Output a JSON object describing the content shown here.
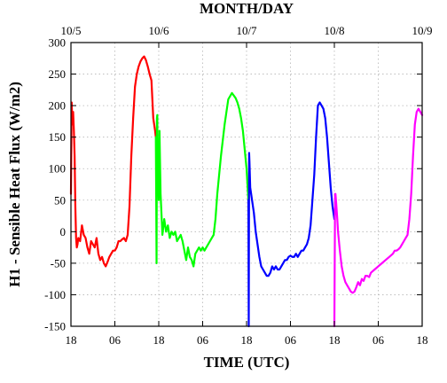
{
  "chart_data": {
    "type": "line",
    "title": "",
    "top_axis_title": "MONTH/DAY",
    "xlabel": "TIME (UTC)",
    "ylabel": "H1 - Sensible Heat Flux (W/m2)",
    "xlim": [
      0,
      96
    ],
    "ylim": [
      -150,
      300
    ],
    "grid": true,
    "x_unit": "hours since 10/4 18 UTC",
    "y_ticks": [
      {
        "value": 300,
        "label": "300"
      },
      {
        "value": 250,
        "label": "250"
      },
      {
        "value": 200,
        "label": "200"
      },
      {
        "value": 150,
        "label": "150"
      },
      {
        "value": 100,
        "label": "100"
      },
      {
        "value": 50,
        "label": "50"
      },
      {
        "value": 0,
        "label": "0"
      },
      {
        "value": -50,
        "label": "-50"
      },
      {
        "value": -100,
        "label": "-100"
      },
      {
        "value": -150,
        "label": "-150"
      }
    ],
    "bottom_ticks": [
      {
        "value": 0,
        "label": "18"
      },
      {
        "value": 12,
        "label": "06"
      },
      {
        "value": 24,
        "label": "18"
      },
      {
        "value": 36,
        "label": "06"
      },
      {
        "value": 48,
        "label": "18"
      },
      {
        "value": 60,
        "label": "06"
      },
      {
        "value": 72,
        "label": "18"
      },
      {
        "value": 84,
        "label": "06"
      },
      {
        "value": 96,
        "label": "18"
      }
    ],
    "top_ticks": [
      {
        "value": 0,
        "label": "10/5"
      },
      {
        "value": 24,
        "label": "10/6"
      },
      {
        "value": 48,
        "label": "10/7"
      },
      {
        "value": 72,
        "label": "10/8"
      },
      {
        "value": 96,
        "label": "10/9"
      }
    ],
    "series": [
      {
        "color": "#ff0000",
        "x": [
          0,
          0.2,
          0.4,
          0.6,
          0.8,
          1,
          1.2,
          1.4,
          1.6,
          1.8,
          2,
          2.5,
          3,
          3.5,
          4,
          4.5,
          5,
          5.5,
          6,
          6.5,
          7,
          7.5,
          8,
          8.5,
          9,
          9.5,
          10,
          10.5,
          11,
          11.5,
          12,
          12.5,
          13,
          13.5,
          14,
          14.5,
          15,
          15.5,
          16,
          16.5,
          17,
          17.5,
          18,
          18.5,
          19,
          19.5,
          20,
          20.5,
          21,
          21.5,
          22,
          22.5,
          23,
          23.2
        ],
        "y": [
          60,
          205,
          170,
          190,
          160,
          120,
          40,
          -10,
          -25,
          -20,
          -10,
          -15,
          10,
          -5,
          -10,
          -25,
          -35,
          -15,
          -20,
          -25,
          -10,
          -35,
          -45,
          -40,
          -50,
          -55,
          -48,
          -40,
          -35,
          -30,
          -30,
          -25,
          -15,
          -15,
          -12,
          -10,
          -15,
          -5,
          40,
          120,
          180,
          230,
          250,
          262,
          270,
          275,
          278,
          272,
          262,
          250,
          240,
          180,
          160,
          150
        ]
      },
      {
        "color": "#00ff00",
        "x": [
          23.2,
          23.3,
          23.4,
          23.5,
          23.6,
          23.7,
          23.8,
          24,
          24.2,
          24.5,
          25,
          25.5,
          26,
          26.5,
          27,
          27.5,
          28,
          28.5,
          29,
          29.5,
          30,
          30.5,
          31,
          31.5,
          32,
          32.5,
          33,
          33.5,
          34,
          34.5,
          35,
          35.5,
          36,
          36.5,
          37,
          37.5,
          38,
          38.5,
          39,
          39.5,
          40,
          41,
          42,
          43,
          44,
          45,
          45.5,
          46,
          46.5,
          47,
          47.5,
          48,
          48.5
        ],
        "y": [
          150,
          60,
          -50,
          180,
          185,
          70,
          120,
          50,
          160,
          60,
          -5,
          20,
          0,
          10,
          -10,
          0,
          -5,
          0,
          -15,
          -10,
          -5,
          -15,
          -30,
          -45,
          -25,
          -40,
          -45,
          -55,
          -35,
          -30,
          -25,
          -30,
          -25,
          -30,
          -25,
          -20,
          -15,
          -10,
          -5,
          20,
          60,
          120,
          170,
          210,
          220,
          212,
          205,
          195,
          180,
          160,
          130,
          100,
          50
        ]
      },
      {
        "color": "#0000ff",
        "x": [
          48.5,
          48.6,
          48.7,
          48.8,
          48.9,
          49,
          49.5,
          50,
          50.5,
          51,
          51.5,
          52,
          52.5,
          53,
          53.5,
          54,
          54.5,
          55,
          55.5,
          56,
          56.5,
          57,
          57.5,
          58,
          58.5,
          59,
          59.5,
          60,
          60.5,
          61,
          61.5,
          62,
          62.5,
          63,
          63.5,
          64,
          64.5,
          65,
          65.5,
          66,
          66.5,
          67,
          67.5,
          68,
          68.5,
          69,
          69.5,
          70,
          70.5,
          71,
          71.5,
          72
        ],
        "y": [
          50,
          -150,
          125,
          110,
          90,
          70,
          50,
          30,
          0,
          -20,
          -40,
          -55,
          -60,
          -65,
          -70,
          -70,
          -65,
          -55,
          -60,
          -55,
          -60,
          -60,
          -55,
          -50,
          -45,
          -45,
          -40,
          -38,
          -40,
          -40,
          -35,
          -40,
          -35,
          -30,
          -30,
          -25,
          -20,
          -10,
          10,
          50,
          90,
          150,
          200,
          205,
          200,
          195,
          180,
          150,
          110,
          70,
          40,
          20
        ]
      },
      {
        "color": "#ff00ff",
        "x": [
          72,
          72.2,
          72.3,
          72.5,
          72.8,
          73,
          73.5,
          74,
          74.5,
          75,
          75.5,
          76,
          76.5,
          77,
          77.5,
          78,
          78.5,
          79,
          79.5,
          80,
          80.5,
          81,
          81.5,
          82,
          83,
          84,
          85,
          86,
          87,
          88,
          88.5,
          89,
          89.5,
          90,
          90.5,
          91,
          91.5,
          92,
          92.5,
          93,
          93.5,
          94,
          94.5,
          95,
          95.5,
          96
        ],
        "y": [
          -150,
          60,
          60,
          45,
          20,
          0,
          -30,
          -55,
          -70,
          -80,
          -85,
          -90,
          -95,
          -97,
          -95,
          -88,
          -80,
          -85,
          -75,
          -78,
          -70,
          -70,
          -72,
          -65,
          -60,
          -55,
          -50,
          -45,
          -40,
          -35,
          -30,
          -30,
          -28,
          -25,
          -20,
          -15,
          -10,
          -5,
          20,
          60,
          120,
          170,
          190,
          195,
          190,
          185
        ]
      }
    ]
  }
}
